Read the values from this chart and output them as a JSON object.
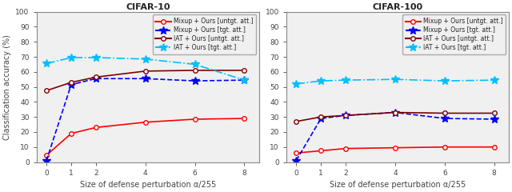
{
  "x": [
    0,
    1,
    2,
    4,
    6,
    8
  ],
  "cifar10": {
    "title": "CIFAR-10",
    "mixup_untgt": [
      4.5,
      19,
      23,
      26.5,
      28.5,
      29
    ],
    "mixup_tgt": [
      1,
      51.5,
      55.5,
      55.5,
      54,
      54.5
    ],
    "iat_untgt": [
      47.5,
      53,
      56.5,
      60.5,
      61,
      61
    ],
    "iat_tgt": [
      65.5,
      69.5,
      69.5,
      68.5,
      65,
      54.5
    ]
  },
  "cifar100": {
    "title": "CIFAR-100",
    "mixup_untgt": [
      6,
      7.5,
      9,
      9.5,
      10,
      10
    ],
    "mixup_tgt": [
      1,
      29,
      31,
      33,
      29,
      28.5
    ],
    "iat_untgt": [
      27,
      30,
      31,
      33,
      32.5,
      32.5
    ],
    "iat_tgt": [
      52,
      54,
      54.5,
      55,
      54,
      54.5
    ]
  },
  "colors": {
    "red_bright": "#FF0000",
    "blue_bright": "#0000FF",
    "red_dark": "#800000",
    "blue_cyan": "#00BFFF"
  },
  "ylabel": "Classification accuracy (%)",
  "xlabel": "Size of defense perturbation α/255",
  "ylim": [
    0,
    100
  ],
  "yticks": [
    0,
    10,
    20,
    30,
    40,
    50,
    60,
    70,
    80,
    90,
    100
  ],
  "xticks": [
    0,
    1,
    2,
    4,
    6,
    8
  ],
  "legend_labels": [
    "Mixup + Ours [untgt. att.]",
    "Mixup + Ours [tgt. att.]",
    "IAT + Ours [untgt. att.]",
    "IAT + Ours [tgt. att.]"
  ],
  "bg_color": "#F0F0F0"
}
